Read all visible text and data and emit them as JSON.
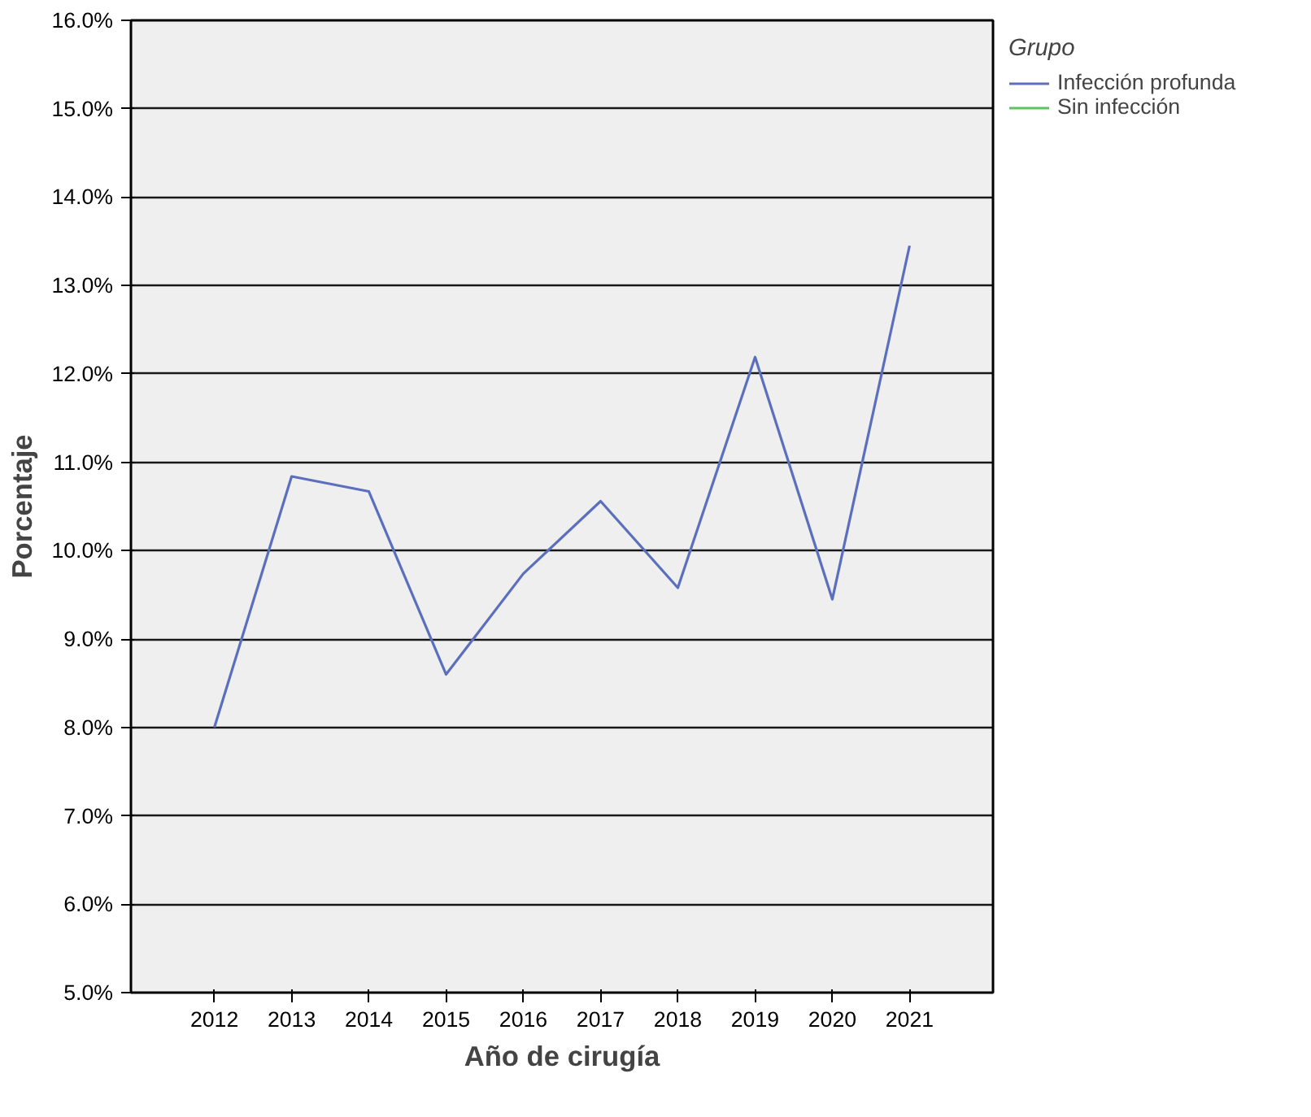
{
  "chart_data": {
    "type": "line",
    "xlabel": "Año de cirugía",
    "ylabel": "Porcentaje",
    "legend_title": "Grupo",
    "categories": [
      "2012",
      "2013",
      "2014",
      "2015",
      "2016",
      "2017",
      "2018",
      "2019",
      "2020",
      "2021"
    ],
    "series": [
      {
        "name": "Infección profunda",
        "color": "#5b6fbd",
        "values": [
          8.0,
          10.84,
          10.67,
          8.6,
          9.74,
          10.56,
          9.58,
          12.19,
          9.45,
          13.45
        ]
      },
      {
        "name": "Sin infección",
        "color": "#5cc45c",
        "values": [
          null,
          null,
          null,
          null,
          null,
          null,
          null,
          null,
          null,
          null
        ]
      }
    ],
    "ylim": [
      5,
      16
    ],
    "yticks": [
      {
        "value": 5,
        "label": "5.0%"
      },
      {
        "value": 6,
        "label": "6.0%"
      },
      {
        "value": 7,
        "label": "7.0%"
      },
      {
        "value": 8,
        "label": "8.0%"
      },
      {
        "value": 9,
        "label": "9.0%"
      },
      {
        "value": 10,
        "label": "10.0%"
      },
      {
        "value": 11,
        "label": "11.0%"
      },
      {
        "value": 12,
        "label": "12.0%"
      },
      {
        "value": 13,
        "label": "13.0%"
      },
      {
        "value": 14,
        "label": "14.0%"
      },
      {
        "value": 15,
        "label": "15.0%"
      },
      {
        "value": 16,
        "label": "16.0%"
      }
    ],
    "grid": "y",
    "legend": "top right",
    "marker": "none",
    "line_style": "solid"
  }
}
